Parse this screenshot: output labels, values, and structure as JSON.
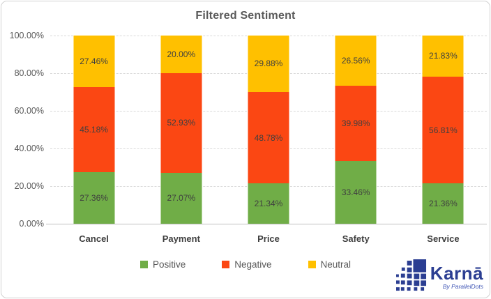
{
  "chart_data": {
    "type": "bar",
    "stacked": true,
    "orientation": "vertical",
    "title": "Filtered Sentiment",
    "categories": [
      "Cancel",
      "Payment",
      "Price",
      "Safety",
      "Service"
    ],
    "series": [
      {
        "name": "Positive",
        "color": "#70AD47",
        "values": [
          27.36,
          27.07,
          21.34,
          33.46,
          21.36
        ]
      },
      {
        "name": "Negative",
        "color": "#FB4713",
        "values": [
          45.18,
          52.93,
          48.78,
          39.98,
          56.81
        ]
      },
      {
        "name": "Neutral",
        "color": "#FFC000",
        "values": [
          27.46,
          20.0,
          29.88,
          26.56,
          21.83
        ]
      }
    ],
    "data_labels": {
      "Cancel": {
        "Positive": "27.36%",
        "Negative": "45.18%",
        "Neutral": "27.46%"
      },
      "Payment": {
        "Positive": "27.07%",
        "Negative": "52.93%",
        "Neutral": "20.00%"
      },
      "Price": {
        "Positive": "21.34%",
        "Negative": "48.78%",
        "Neutral": "29.88%"
      },
      "Safety": {
        "Positive": "33.46%",
        "Negative": "39.98%",
        "Neutral": "26.56%"
      },
      "Service": {
        "Positive": "21.36%",
        "Negative": "56.81%",
        "Neutral": "21.83%"
      }
    },
    "xlabel": "",
    "ylabel": "",
    "ylim": [
      0,
      100
    ],
    "yticks": [
      "0.00%",
      "20.00%",
      "40.00%",
      "60.00%",
      "80.00%",
      "100.00%"
    ],
    "grid": "dashed-horizontal",
    "legend_position": "bottom"
  },
  "logo": {
    "brand": "Karnā",
    "byline": "By ParallelDots",
    "color": "#2b3e92"
  }
}
